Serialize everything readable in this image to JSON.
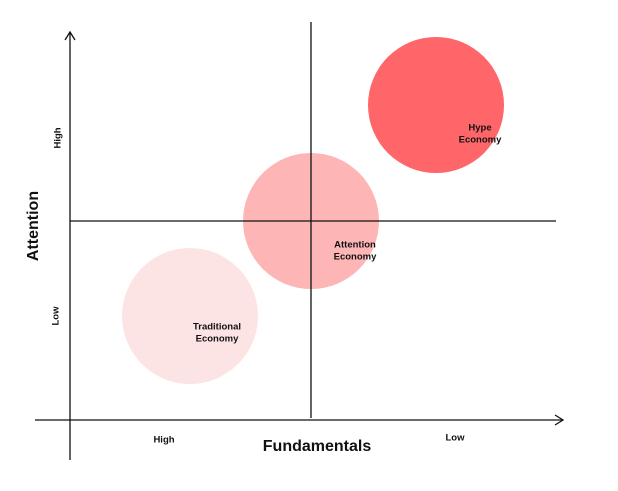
{
  "axes": {
    "y": {
      "title": "Attention",
      "high": "High",
      "low": "Low"
    },
    "x": {
      "title": "Fundamentals",
      "high": "High",
      "low": "Low"
    }
  },
  "nodes": [
    {
      "lines": [
        "Traditional",
        "Economy"
      ]
    },
    {
      "lines": [
        "Attention",
        "Economy"
      ]
    },
    {
      "lines": [
        "Hype",
        "Economy"
      ]
    }
  ]
}
